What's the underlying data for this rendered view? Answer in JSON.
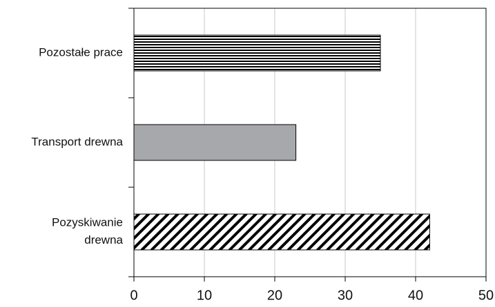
{
  "chart_data": {
    "type": "barh",
    "categories": [
      "Pozostałe prace",
      "Transport drewna",
      "Pozyskiwanie\ndrewna"
    ],
    "values": [
      35,
      23,
      42
    ],
    "colors": [
      "#000000",
      "#a6a8ab",
      "#000000"
    ],
    "patterns": [
      "horizontal-stripes",
      "solid",
      "diagonal-hatch"
    ],
    "xlim": [
      0,
      50
    ],
    "xticks": [
      0,
      10,
      20,
      30,
      40,
      50
    ],
    "grid": true
  }
}
